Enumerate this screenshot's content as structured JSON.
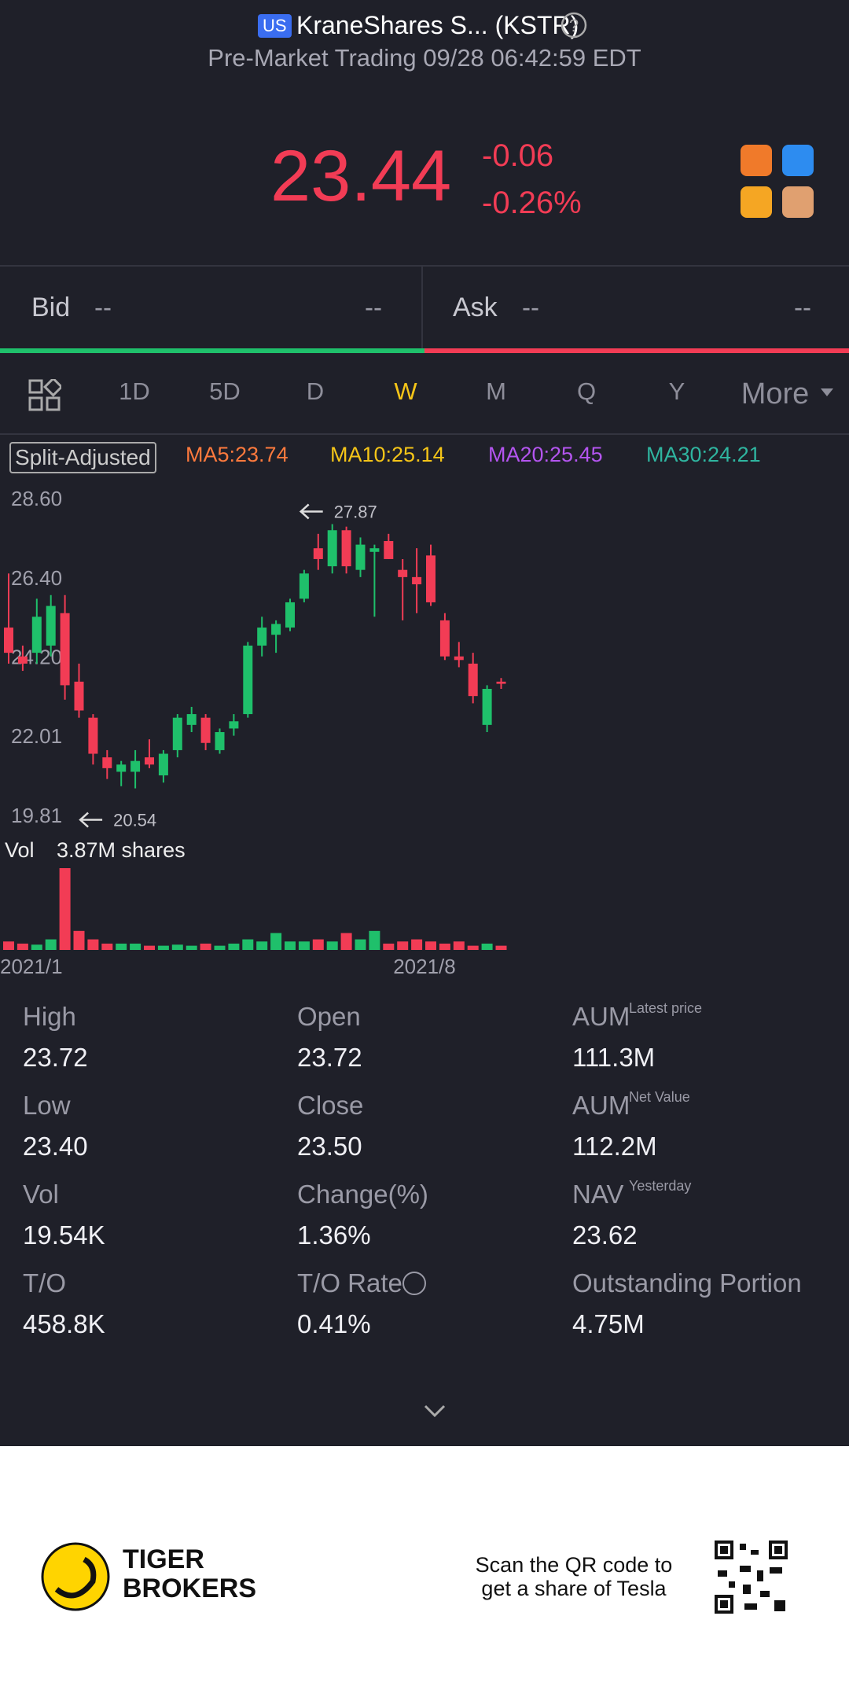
{
  "header": {
    "market": "US",
    "title": "KraneShares S... (KSTR)",
    "subtitle": "Pre-Market Trading 09/28 06:42:59 EDT"
  },
  "quote": {
    "price": "23.44",
    "change": "-0.06",
    "change_pct": "-0.26%"
  },
  "book": {
    "bid_label": "Bid",
    "bid_value": "--",
    "bid_size": "--",
    "ask_label": "Ask",
    "ask_value": "--",
    "ask_size": "--"
  },
  "tabs": {
    "items": [
      "1D",
      "5D",
      "D",
      "W",
      "M",
      "Q",
      "Y",
      "More"
    ],
    "active": "W"
  },
  "legend": {
    "mode": "Split-Adjusted",
    "items": [
      {
        "text": "MA5:23.74",
        "color": "#ff7a3d"
      },
      {
        "text": "MA10:25.14",
        "color": "#f5c518"
      },
      {
        "text": "MA20:25.45",
        "color": "#b455f0"
      },
      {
        "text": "MA30:24.21",
        "color": "#2fb5a0"
      }
    ]
  },
  "chart_data": {
    "type": "candlestick",
    "up_color": "#1fc06b",
    "down_color": "#f23c55",
    "categories": [
      "2021/1",
      null,
      null,
      null,
      null,
      null,
      null,
      null,
      null,
      null,
      null,
      null,
      null,
      null,
      null,
      null,
      null,
      null,
      null,
      null,
      null,
      null,
      null,
      null,
      null,
      null,
      null,
      null,
      "2021/8",
      null,
      null,
      null,
      null,
      null,
      null,
      null
    ],
    "open": [
      25.0,
      24.2,
      24.3,
      24.5,
      25.4,
      23.5,
      22.5,
      21.4,
      21.0,
      21.0,
      21.4,
      20.9,
      21.6,
      22.3,
      22.5,
      21.6,
      22.2,
      22.6,
      24.5,
      24.8,
      25.0,
      25.8,
      27.2,
      26.7,
      27.7,
      26.6,
      27.1,
      27.4,
      26.6,
      26.4,
      27.0,
      25.2,
      24.2,
      24.0,
      22.3,
      23.5
    ],
    "high": [
      26.5,
      24.5,
      25.8,
      25.9,
      25.9,
      24.0,
      22.6,
      21.6,
      21.3,
      21.6,
      21.9,
      21.6,
      22.6,
      22.8,
      22.6,
      22.2,
      22.6,
      24.6,
      25.3,
      25.2,
      25.8,
      26.6,
      27.6,
      27.87,
      27.8,
      27.5,
      27.3,
      27.6,
      26.9,
      27.2,
      27.3,
      25.4,
      24.6,
      24.3,
      23.4,
      23.6
    ],
    "low": [
      24.0,
      23.8,
      24.0,
      24.2,
      23.0,
      22.5,
      21.2,
      20.8,
      20.6,
      20.54,
      21.1,
      20.7,
      21.4,
      22.1,
      21.6,
      21.5,
      22.0,
      22.5,
      24.2,
      24.3,
      24.9,
      25.7,
      26.6,
      26.5,
      26.5,
      26.4,
      25.3,
      26.9,
      25.2,
      25.4,
      25.6,
      24.1,
      23.9,
      22.9,
      22.1,
      23.3
    ],
    "close": [
      24.3,
      24.0,
      25.3,
      25.6,
      23.4,
      22.7,
      21.5,
      21.1,
      21.2,
      21.3,
      21.2,
      21.5,
      22.5,
      22.6,
      21.8,
      22.1,
      22.4,
      24.5,
      25.0,
      25.1,
      25.7,
      26.5,
      26.9,
      27.7,
      26.7,
      27.3,
      27.2,
      26.9,
      26.4,
      26.2,
      25.7,
      24.2,
      24.1,
      23.1,
      23.3,
      23.44
    ],
    "volume": [
      0.4,
      0.3,
      0.25,
      0.5,
      3.87,
      0.9,
      0.5,
      0.3,
      0.3,
      0.3,
      0.2,
      0.2,
      0.25,
      0.2,
      0.3,
      0.2,
      0.3,
      0.5,
      0.4,
      0.8,
      0.4,
      0.4,
      0.5,
      0.4,
      0.8,
      0.5,
      0.9,
      0.3,
      0.4,
      0.5,
      0.4,
      0.3,
      0.4,
      0.2,
      0.3,
      0.2
    ],
    "ylim": [
      19.81,
      28.6
    ],
    "yticks": [
      {
        "value": 28.6,
        "label": "28.60"
      },
      {
        "value": 26.4,
        "label": "26.40"
      },
      {
        "value": 24.2,
        "label": "24.20"
      },
      22.01,
      19.81
    ],
    "volume_lim": [
      0,
      3.87
    ],
    "annotations": [
      27.87,
      20.54
    ],
    "volume_label": "Vol",
    "volume_max_label": "3.87M shares"
  },
  "stats": [
    {
      "label": "High",
      "value": "23.72"
    },
    {
      "label": "Open",
      "value": "23.72"
    },
    {
      "label": "AUM",
      "sup": "Latest price",
      "value": "111.3M"
    },
    {
      "label": "Low",
      "value": "23.40"
    },
    {
      "label": "Close",
      "value": "23.50"
    },
    {
      "label": "AUM",
      "sup": "Net Value",
      "value": "112.2M"
    },
    {
      "label": "Vol",
      "value": "19.54K"
    },
    {
      "label": "Change(%)",
      "value": "1.36%"
    },
    {
      "label": "NAV",
      "sup": "Yesterday",
      "value": "23.62"
    },
    {
      "label": "T/O",
      "value": "458.8K"
    },
    {
      "label": "T/O Rate",
      "value": "0.41%"
    },
    {
      "label": "Outstanding Portion",
      "value": "4.75M"
    }
  ],
  "footer": {
    "brand_line1": "TIGER",
    "brand_line2": "BROKERS",
    "promo_line1": "Scan the QR code to",
    "promo_line2": "get a share of Tesla"
  }
}
